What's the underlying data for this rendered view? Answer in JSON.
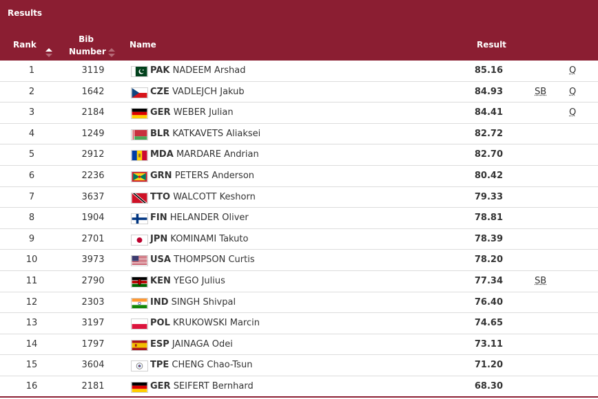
{
  "panel": {
    "title": "Results"
  },
  "columns": {
    "rank": "Rank",
    "bib_line1": "Bib",
    "bib_line2": "Number",
    "name": "Name",
    "result": "Result"
  },
  "colors": {
    "header_bg": "#8b1e32",
    "row_border": "#dcdcdc"
  },
  "rows": [
    {
      "rank": "1",
      "bib": "3119",
      "flag": "pakistan-flag-icon",
      "noc": "PAK",
      "name": "NADEEM Arshad",
      "result": "85.16",
      "sb": "",
      "q": "Q"
    },
    {
      "rank": "2",
      "bib": "1642",
      "flag": "czech-flag-icon",
      "noc": "CZE",
      "name": "VADLEJCH Jakub",
      "result": "84.93",
      "sb": "SB",
      "q": "Q"
    },
    {
      "rank": "3",
      "bib": "2184",
      "flag": "germany-flag-icon",
      "noc": "GER",
      "name": "WEBER Julian",
      "result": "84.41",
      "sb": "",
      "q": "Q"
    },
    {
      "rank": "4",
      "bib": "1249",
      "flag": "belarus-flag-icon",
      "noc": "BLR",
      "name": "KATKAVETS Aliaksei",
      "result": "82.72",
      "sb": "",
      "q": ""
    },
    {
      "rank": "5",
      "bib": "2912",
      "flag": "moldova-flag-icon",
      "noc": "MDA",
      "name": "MARDARE Andrian",
      "result": "82.70",
      "sb": "",
      "q": ""
    },
    {
      "rank": "6",
      "bib": "2236",
      "flag": "grenada-flag-icon",
      "noc": "GRN",
      "name": "PETERS Anderson",
      "result": "80.42",
      "sb": "",
      "q": ""
    },
    {
      "rank": "7",
      "bib": "3637",
      "flag": "trinidad-tobago-flag-icon",
      "noc": "TTO",
      "name": "WALCOTT Keshorn",
      "result": "79.33",
      "sb": "",
      "q": ""
    },
    {
      "rank": "8",
      "bib": "1904",
      "flag": "finland-flag-icon",
      "noc": "FIN",
      "name": "HELANDER Oliver",
      "result": "78.81",
      "sb": "",
      "q": ""
    },
    {
      "rank": "9",
      "bib": "2701",
      "flag": "japan-flag-icon",
      "noc": "JPN",
      "name": "KOMINAMI Takuto",
      "result": "78.39",
      "sb": "",
      "q": ""
    },
    {
      "rank": "10",
      "bib": "3973",
      "flag": "usa-flag-icon",
      "noc": "USA",
      "name": "THOMPSON Curtis",
      "result": "78.20",
      "sb": "",
      "q": ""
    },
    {
      "rank": "11",
      "bib": "2790",
      "flag": "kenya-flag-icon",
      "noc": "KEN",
      "name": "YEGO Julius",
      "result": "77.34",
      "sb": "SB",
      "q": ""
    },
    {
      "rank": "12",
      "bib": "2303",
      "flag": "india-flag-icon",
      "noc": "IND",
      "name": "SINGH Shivpal",
      "result": "76.40",
      "sb": "",
      "q": ""
    },
    {
      "rank": "13",
      "bib": "3197",
      "flag": "poland-flag-icon",
      "noc": "POL",
      "name": "KRUKOWSKI Marcin",
      "result": "74.65",
      "sb": "",
      "q": ""
    },
    {
      "rank": "14",
      "bib": "1797",
      "flag": "spain-flag-icon",
      "noc": "ESP",
      "name": "JAINAGA Odei",
      "result": "73.11",
      "sb": "",
      "q": ""
    },
    {
      "rank": "15",
      "bib": "3604",
      "flag": "chinese-taipei-flag-icon",
      "noc": "TPE",
      "name": "CHENG Chao-Tsun",
      "result": "71.20",
      "sb": "",
      "q": ""
    },
    {
      "rank": "16",
      "bib": "2181",
      "flag": "germany-flag-icon",
      "noc": "GER",
      "name": "SEIFERT Bernhard",
      "result": "68.30",
      "sb": "",
      "q": ""
    }
  ]
}
